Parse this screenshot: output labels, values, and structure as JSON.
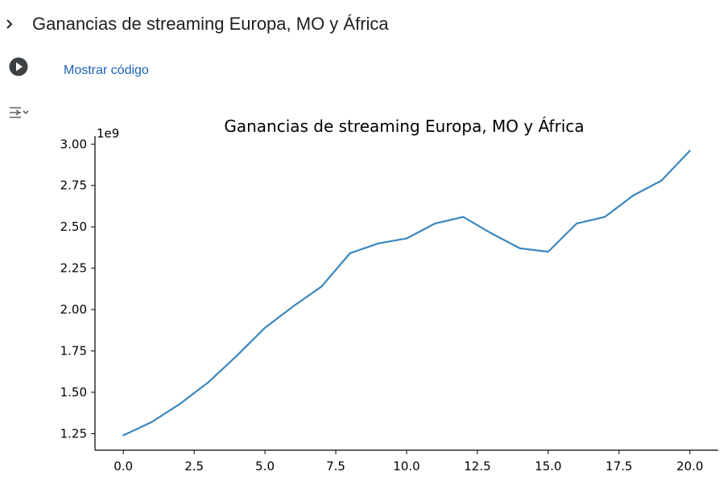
{
  "section": {
    "title": "Ganancias de streaming Europa, MO y África",
    "chevron_icon": "chevron-right-icon"
  },
  "cell": {
    "run_icon": "play-circle-icon",
    "show_code_label": "Mostrar código",
    "output_toggle_icon": "output-toggle-icon"
  },
  "colors": {
    "line": "#3a87be",
    "axis": "#000000",
    "link": "#1a62b8"
  },
  "chart_data": {
    "type": "line",
    "title": "Ganancias de streaming Europa, MO y África",
    "offset_label": "1e9",
    "xlabel": "",
    "ylabel": "",
    "xlim": [
      -1,
      21
    ],
    "ylim": [
      1.15,
      3.05
    ],
    "x_ticks": [
      0.0,
      2.5,
      5.0,
      7.5,
      10.0,
      12.5,
      15.0,
      17.5,
      20.0
    ],
    "x_tick_labels": [
      "0.0",
      "2.5",
      "5.0",
      "7.5",
      "10.0",
      "12.5",
      "15.0",
      "17.5",
      "20.0"
    ],
    "y_ticks": [
      1.25,
      1.5,
      1.75,
      2.0,
      2.25,
      2.5,
      2.75,
      3.0
    ],
    "y_tick_labels": [
      "1.25",
      "1.50",
      "1.75",
      "2.00",
      "2.25",
      "2.50",
      "2.75",
      "3.00"
    ],
    "grid": false,
    "x": [
      0,
      1,
      2,
      3,
      4,
      5,
      6,
      7,
      8,
      9,
      10,
      11,
      12,
      13,
      14,
      15,
      16,
      17,
      18,
      19,
      20
    ],
    "y": [
      1.24,
      1.32,
      1.43,
      1.56,
      1.72,
      1.89,
      2.02,
      2.14,
      2.34,
      2.4,
      2.43,
      2.52,
      2.56,
      2.46,
      2.37,
      2.35,
      2.52,
      2.56,
      2.69,
      2.78,
      2.96
    ]
  }
}
